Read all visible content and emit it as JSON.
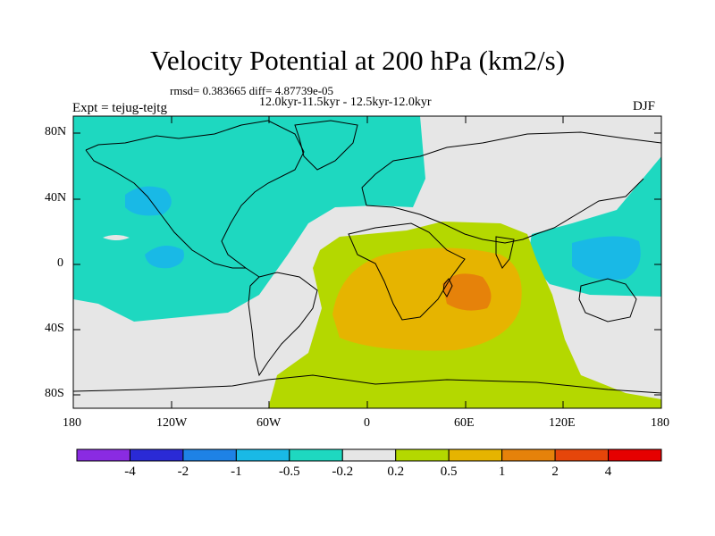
{
  "title": "Velocity Potential at 200 hPa (km2/s)",
  "stats": "rmsd= 0.383665 diff= 4.87739e-05",
  "period": "12.0kyr-11.5kyr - 12.5kyr-12.0kyr",
  "expt": "Expt = tejug-tejtg",
  "season": "DJF",
  "lat_labels": [
    "80N",
    "40N",
    "0",
    "40S",
    "80S"
  ],
  "lon_labels": [
    "180",
    "120W",
    "60W",
    "0",
    "60E",
    "120E",
    "180"
  ],
  "colorbar": {
    "colors": [
      "#8a2be2",
      "#2a2ad6",
      "#1e82e6",
      "#19b9e6",
      "#1ed8c0",
      "#e6e6e6",
      "#b4d800",
      "#e6b400",
      "#e6820a",
      "#e6460a",
      "#e60000"
    ],
    "labels": [
      "-4",
      "-2",
      "-1",
      "-0.5",
      "-0.2",
      "0.2",
      "0.5",
      "1",
      "2",
      "4"
    ]
  },
  "field_colors": {
    "neg_weak": "#1ed8c0",
    "neg_mod": "#19b9e6",
    "neutral": "#e6e6e6",
    "pos_weak": "#b4d800",
    "pos_mod": "#e6b400",
    "pos_strong": "#e6820a"
  }
}
